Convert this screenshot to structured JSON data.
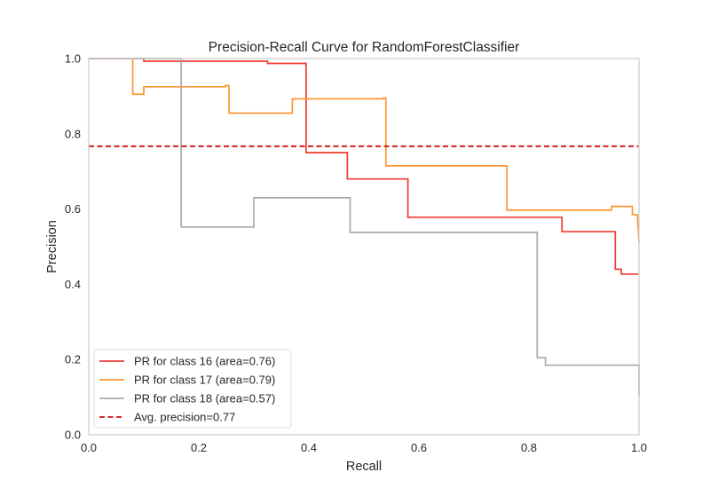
{
  "chart_data": {
    "type": "line",
    "title": "Precision-Recall Curve for RandomForestClassifier",
    "xlabel": "Recall",
    "ylabel": "Precision",
    "xlim": [
      0.0,
      1.0
    ],
    "ylim": [
      0.0,
      1.0
    ],
    "x_ticks": [
      0.0,
      0.2,
      0.4,
      0.6,
      0.8,
      1.0
    ],
    "y_ticks": [
      0.0,
      0.2,
      0.4,
      0.6,
      0.8,
      1.0
    ],
    "x_tick_labels": [
      "0.0",
      "0.2",
      "0.4",
      "0.6",
      "0.8",
      "1.0"
    ],
    "y_tick_labels": [
      "0.0",
      "0.2",
      "0.4",
      "0.6",
      "0.8",
      "1.0"
    ],
    "grid": false,
    "legend_position": "lower-left",
    "series": [
      {
        "name": "PR for class 16 (area=0.76)",
        "color": "#f03b32",
        "style": "solid",
        "x": [
          0.0,
          0.1,
          0.1,
          0.325,
          0.325,
          0.395,
          0.395,
          0.47,
          0.47,
          0.58,
          0.58,
          0.86,
          0.86,
          0.957,
          0.957,
          0.968,
          0.968,
          1.0
        ],
        "y": [
          1.0,
          1.0,
          0.993,
          0.993,
          0.987,
          0.987,
          0.75,
          0.75,
          0.68,
          0.68,
          0.578,
          0.578,
          0.54,
          0.54,
          0.44,
          0.44,
          0.427,
          0.427
        ]
      },
      {
        "name": "PR for class 17 (area=0.79)",
        "color": "#fb9633",
        "style": "solid",
        "x": [
          0.0,
          0.08,
          0.08,
          0.1,
          0.1,
          0.248,
          0.248,
          0.255,
          0.255,
          0.37,
          0.37,
          0.535,
          0.535,
          0.54,
          0.54,
          0.76,
          0.76,
          0.95,
          0.95,
          0.988,
          0.988,
          0.997,
          0.997,
          1.0
        ],
        "y": [
          1.0,
          1.0,
          0.905,
          0.905,
          0.925,
          0.925,
          0.928,
          0.928,
          0.855,
          0.855,
          0.893,
          0.893,
          0.895,
          0.895,
          0.715,
          0.715,
          0.597,
          0.597,
          0.607,
          0.607,
          0.585,
          0.585,
          0.585,
          0.51
        ]
      },
      {
        "name": "PR for class 18 (area=0.57)",
        "color": "#a9a9a9",
        "style": "solid",
        "x": [
          0.0,
          0.168,
          0.168,
          0.3,
          0.3,
          0.475,
          0.475,
          0.815,
          0.815,
          0.83,
          0.83,
          1.0,
          1.0
        ],
        "y": [
          1.0,
          1.0,
          0.552,
          0.552,
          0.63,
          0.63,
          0.538,
          0.538,
          0.205,
          0.205,
          0.185,
          0.185,
          0.105
        ]
      },
      {
        "name": "Avg. precision=0.77",
        "color": "#cc1010",
        "style": "dashed",
        "x": [
          0.0,
          1.0
        ],
        "y": [
          0.767,
          0.767
        ]
      }
    ]
  }
}
